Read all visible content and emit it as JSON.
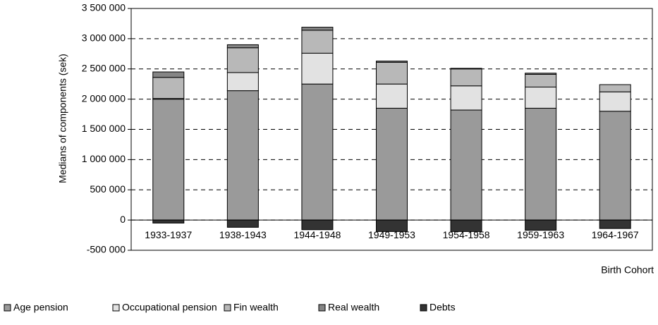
{
  "chart_data": {
    "type": "stacked_bar",
    "y_label": "Medians of components (sek)",
    "x_label": "Birth Cohort",
    "categories": [
      "1933-1937",
      "1938-1943",
      "1944-1948",
      "1949-1953",
      "1954-1958",
      "1959-1963",
      "1964-1967"
    ],
    "series": [
      {
        "name": "Age pension",
        "color": "#9a9a9a",
        "values": [
          2000000,
          2140000,
          2250000,
          1850000,
          1820000,
          1850000,
          1800000
        ]
      },
      {
        "name": "Occupational pension",
        "color": "#e2e2e2",
        "values": [
          10000,
          300000,
          510000,
          400000,
          400000,
          350000,
          320000
        ]
      },
      {
        "name": "Fin wealth",
        "color": "#b8b8b8",
        "values": [
          350000,
          410000,
          380000,
          360000,
          280000,
          210000,
          120000
        ]
      },
      {
        "name": "Real wealth",
        "color": "#858585",
        "values": [
          90000,
          50000,
          50000,
          20000,
          10000,
          20000,
          0
        ]
      },
      {
        "name": "Debts",
        "color": "#333333",
        "values": [
          -50000,
          -120000,
          -160000,
          -190000,
          -190000,
          -170000,
          -140000
        ]
      }
    ],
    "ylim": [
      -500000,
      3500000
    ],
    "yticks": [
      {
        "value": -500000,
        "label": "-500 000"
      },
      0,
      {
        "value": 500000,
        "label": "500 000"
      },
      {
        "value": 1000000,
        "label": "1 000 000"
      },
      {
        "value": 1500000,
        "label": "1 500 000"
      },
      {
        "value": 2000000,
        "label": "2 000 000"
      },
      {
        "value": 2500000,
        "label": "2 500 000"
      },
      {
        "value": 3000000,
        "label": "3 000 000"
      },
      {
        "value": 3500000,
        "label": "3 500 000"
      }
    ],
    "grid": true
  }
}
